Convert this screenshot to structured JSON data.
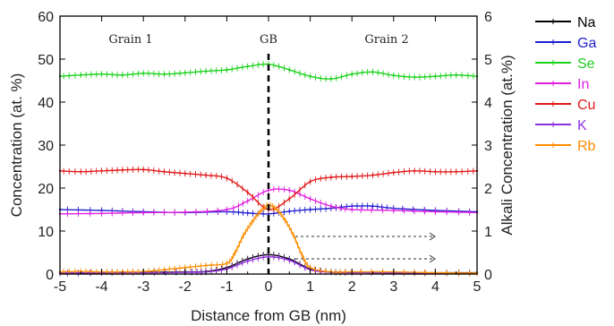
{
  "chart_data": {
    "type": "line",
    "xlabel": "Distance from GB (nm)",
    "ylabel_left": "Concentration (at. %)",
    "ylabel_right": "Alkali Concentration (at.%)",
    "xlim": [
      -5,
      5
    ],
    "ylim_left": [
      0,
      60
    ],
    "ylim_right": [
      0,
      6
    ],
    "x_ticks": [
      "-5",
      "-4",
      "-3",
      "-2",
      "-1",
      "0",
      "1",
      "2",
      "3",
      "4",
      "5"
    ],
    "y_ticks_left": [
      "0",
      "10",
      "20",
      "30",
      "40",
      "50",
      "60"
    ],
    "y_ticks_right": [
      "0",
      "1",
      "2",
      "3",
      "4",
      "5",
      "6"
    ],
    "grid": false,
    "legend_position": "right-outside-top",
    "annotations": {
      "grain1": "Grain 1",
      "gb": "GB",
      "grain2": "Grain 2"
    },
    "series": [
      {
        "name": "Na",
        "color": "#000000",
        "axis": "right",
        "x": [
          -5,
          -4,
          -3,
          -2,
          -1.5,
          -1,
          -0.5,
          0,
          0.5,
          1,
          1.5,
          2,
          3,
          4,
          5
        ],
        "y": [
          0.02,
          0.03,
          0.04,
          0.05,
          0.06,
          0.15,
          0.35,
          0.45,
          0.35,
          0.12,
          0.05,
          0.04,
          0.03,
          0.03,
          0.03
        ]
      },
      {
        "name": "Ga",
        "color": "#1f1fd0",
        "axis": "left",
        "x": [
          -5,
          -4,
          -3,
          -2,
          -1,
          -0.5,
          0,
          0.5,
          1,
          1.5,
          2,
          2.5,
          3,
          4,
          5
        ],
        "y": [
          15,
          14.8,
          14.5,
          14.3,
          14.5,
          14.2,
          14.0,
          14.6,
          15.0,
          15.3,
          15.8,
          15.8,
          15.3,
          14.8,
          14.5
        ]
      },
      {
        "name": "Se",
        "color": "#1bd11b",
        "axis": "left",
        "x": [
          -5,
          -4.5,
          -4,
          -3.5,
          -3,
          -2.5,
          -2,
          -1.5,
          -1,
          -0.5,
          0,
          0.5,
          1,
          1.5,
          2,
          2.5,
          3,
          3.5,
          4,
          4.5,
          5
        ],
        "y": [
          46,
          46.3,
          46.5,
          46.3,
          46.7,
          46.5,
          46.8,
          47.2,
          47.5,
          48.3,
          48.8,
          47.5,
          46.0,
          45.4,
          46.5,
          47.0,
          46.2,
          45.8,
          46.0,
          46.3,
          46.0
        ]
      },
      {
        "name": "In",
        "color": "#e020e0",
        "axis": "left",
        "x": [
          -5,
          -4,
          -3,
          -2,
          -1,
          -0.5,
          0,
          0.5,
          1,
          1.5,
          2,
          3,
          4,
          5
        ],
        "y": [
          14,
          14.1,
          14.3,
          14.4,
          15.0,
          17.0,
          19.5,
          19.5,
          17.5,
          15.8,
          15.0,
          14.8,
          14.5,
          14.3
        ]
      },
      {
        "name": "Cu",
        "color": "#e01818",
        "axis": "left",
        "x": [
          -5,
          -4.5,
          -4,
          -3.5,
          -3,
          -2.5,
          -2,
          -1.5,
          -1,
          -0.5,
          0,
          0.5,
          1,
          1.5,
          2,
          2.5,
          3,
          3.5,
          4,
          4.5,
          5
        ],
        "y": [
          24,
          23.8,
          24.0,
          24.2,
          24.3,
          23.8,
          23.4,
          23.0,
          22.3,
          19.0,
          15.0,
          17.5,
          21.5,
          22.5,
          22.7,
          23.0,
          23.6,
          24.0,
          23.8,
          23.8,
          24.0
        ]
      },
      {
        "name": "K",
        "color": "#9030e0",
        "axis": "right",
        "x": [
          -5,
          -4,
          -3,
          -2,
          -1.5,
          -1,
          -0.5,
          0,
          0.5,
          1,
          1.5,
          2,
          3,
          4,
          5
        ],
        "y": [
          0.02,
          0.03,
          0.03,
          0.04,
          0.05,
          0.12,
          0.3,
          0.4,
          0.32,
          0.1,
          0.04,
          0.03,
          0.03,
          0.02,
          0.02
        ]
      },
      {
        "name": "Rb",
        "color": "#ff8c00",
        "axis": "right",
        "x": [
          -5,
          -4.5,
          -4,
          -3.5,
          -3,
          -2.5,
          -2,
          -1.5,
          -1,
          -0.8,
          -0.6,
          -0.4,
          -0.2,
          0,
          0.2,
          0.4,
          0.6,
          0.8,
          1,
          1.5,
          2,
          3,
          4,
          5
        ],
        "y": [
          0.05,
          0.06,
          0.05,
          0.05,
          0.06,
          0.1,
          0.15,
          0.2,
          0.25,
          0.5,
          0.9,
          1.2,
          1.45,
          1.6,
          1.5,
          1.25,
          0.9,
          0.45,
          0.15,
          0.05,
          0.05,
          0.05,
          0.03,
          0.02
        ]
      }
    ]
  }
}
